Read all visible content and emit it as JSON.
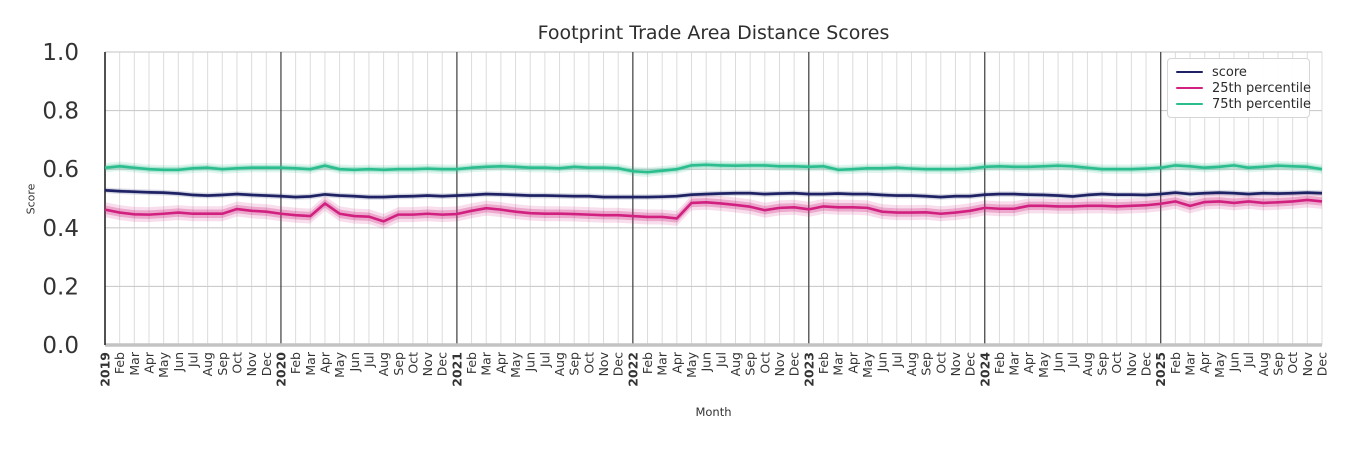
{
  "chart_data": {
    "type": "line",
    "title": "Footprint Trade Area Distance Scores",
    "xlabel": "Month",
    "ylabel": "Score",
    "ylim": [
      0.0,
      1.0
    ],
    "ytick_labels": [
      "0.0",
      "0.2",
      "0.4",
      "0.6",
      "0.8",
      "1.0"
    ],
    "grid": true,
    "legend_position": "upper right",
    "categories": [
      "2019",
      "Feb",
      "Mar",
      "Apr",
      "May",
      "Jun",
      "Jul",
      "Aug",
      "Sep",
      "Oct",
      "Nov",
      "Dec",
      "2020",
      "Feb",
      "Mar",
      "Apr",
      "May",
      "Jun",
      "Jul",
      "Aug",
      "Sep",
      "Oct",
      "Nov",
      "Dec",
      "2021",
      "Feb",
      "Mar",
      "Apr",
      "May",
      "Jun",
      "Jul",
      "Aug",
      "Sep",
      "Oct",
      "Nov",
      "Dec",
      "2022",
      "Feb",
      "Mar",
      "Apr",
      "May",
      "Jun",
      "Jul",
      "Aug",
      "Sep",
      "Oct",
      "Nov",
      "Dec",
      "2023",
      "Feb",
      "Mar",
      "Apr",
      "May",
      "Jun",
      "Jul",
      "Aug",
      "Sep",
      "Oct",
      "Nov",
      "Dec",
      "2024",
      "Feb",
      "Mar",
      "Apr",
      "May",
      "Jun",
      "Jul",
      "Aug",
      "Sep",
      "Oct",
      "Nov",
      "Dec",
      "2025",
      "Feb",
      "Mar",
      "Apr",
      "May",
      "Jun",
      "Jul",
      "Aug",
      "Sep",
      "Oct",
      "Nov",
      "Dec"
    ],
    "series": [
      {
        "name": "score",
        "color": "#1e2264",
        "band_halfwidth": 0.006,
        "values": [
          0.528,
          0.525,
          0.523,
          0.521,
          0.52,
          0.517,
          0.512,
          0.51,
          0.512,
          0.515,
          0.512,
          0.51,
          0.508,
          0.505,
          0.507,
          0.514,
          0.51,
          0.508,
          0.505,
          0.505,
          0.507,
          0.508,
          0.51,
          0.508,
          0.51,
          0.512,
          0.515,
          0.514,
          0.512,
          0.51,
          0.51,
          0.509,
          0.508,
          0.508,
          0.505,
          0.505,
          0.505,
          0.505,
          0.506,
          0.508,
          0.513,
          0.515,
          0.517,
          0.518,
          0.518,
          0.515,
          0.517,
          0.518,
          0.515,
          0.515,
          0.517,
          0.515,
          0.515,
          0.512,
          0.51,
          0.51,
          0.508,
          0.505,
          0.508,
          0.508,
          0.513,
          0.515,
          0.515,
          0.513,
          0.512,
          0.51,
          0.507,
          0.512,
          0.515,
          0.513,
          0.513,
          0.512,
          0.515,
          0.52,
          0.515,
          0.518,
          0.52,
          0.518,
          0.515,
          0.518,
          0.517,
          0.518,
          0.52,
          0.518
        ]
      },
      {
        "name": "25th percentile",
        "color": "#d1207f",
        "band_halfwidth": 0.016,
        "values": [
          0.462,
          0.452,
          0.446,
          0.445,
          0.448,
          0.452,
          0.448,
          0.448,
          0.448,
          0.464,
          0.458,
          0.455,
          0.448,
          0.443,
          0.44,
          0.483,
          0.448,
          0.44,
          0.438,
          0.422,
          0.445,
          0.445,
          0.448,
          0.445,
          0.447,
          0.458,
          0.467,
          0.462,
          0.455,
          0.45,
          0.448,
          0.448,
          0.447,
          0.445,
          0.443,
          0.443,
          0.44,
          0.437,
          0.437,
          0.432,
          0.485,
          0.487,
          0.483,
          0.478,
          0.472,
          0.46,
          0.468,
          0.47,
          0.463,
          0.473,
          0.47,
          0.47,
          0.468,
          0.455,
          0.452,
          0.452,
          0.453,
          0.448,
          0.452,
          0.458,
          0.468,
          0.465,
          0.465,
          0.475,
          0.475,
          0.473,
          0.473,
          0.475,
          0.475,
          0.473,
          0.475,
          0.477,
          0.482,
          0.49,
          0.475,
          0.488,
          0.49,
          0.485,
          0.49,
          0.485,
          0.487,
          0.49,
          0.495,
          0.49
        ]
      },
      {
        "name": "75th percentile",
        "color": "#2bbd8e",
        "band_halfwidth": 0.01,
        "values": [
          0.605,
          0.61,
          0.605,
          0.6,
          0.598,
          0.598,
          0.603,
          0.605,
          0.6,
          0.603,
          0.605,
          0.605,
          0.605,
          0.603,
          0.6,
          0.612,
          0.6,
          0.598,
          0.6,
          0.598,
          0.6,
          0.6,
          0.602,
          0.6,
          0.6,
          0.605,
          0.608,
          0.61,
          0.608,
          0.605,
          0.605,
          0.603,
          0.608,
          0.605,
          0.605,
          0.603,
          0.593,
          0.59,
          0.595,
          0.6,
          0.613,
          0.615,
          0.613,
          0.612,
          0.613,
          0.613,
          0.61,
          0.61,
          0.608,
          0.61,
          0.598,
          0.6,
          0.603,
          0.603,
          0.605,
          0.602,
          0.6,
          0.6,
          0.6,
          0.602,
          0.608,
          0.61,
          0.608,
          0.608,
          0.61,
          0.612,
          0.61,
          0.605,
          0.6,
          0.6,
          0.6,
          0.602,
          0.605,
          0.613,
          0.61,
          0.605,
          0.608,
          0.613,
          0.605,
          0.608,
          0.612,
          0.61,
          0.608,
          0.6
        ]
      }
    ]
  }
}
